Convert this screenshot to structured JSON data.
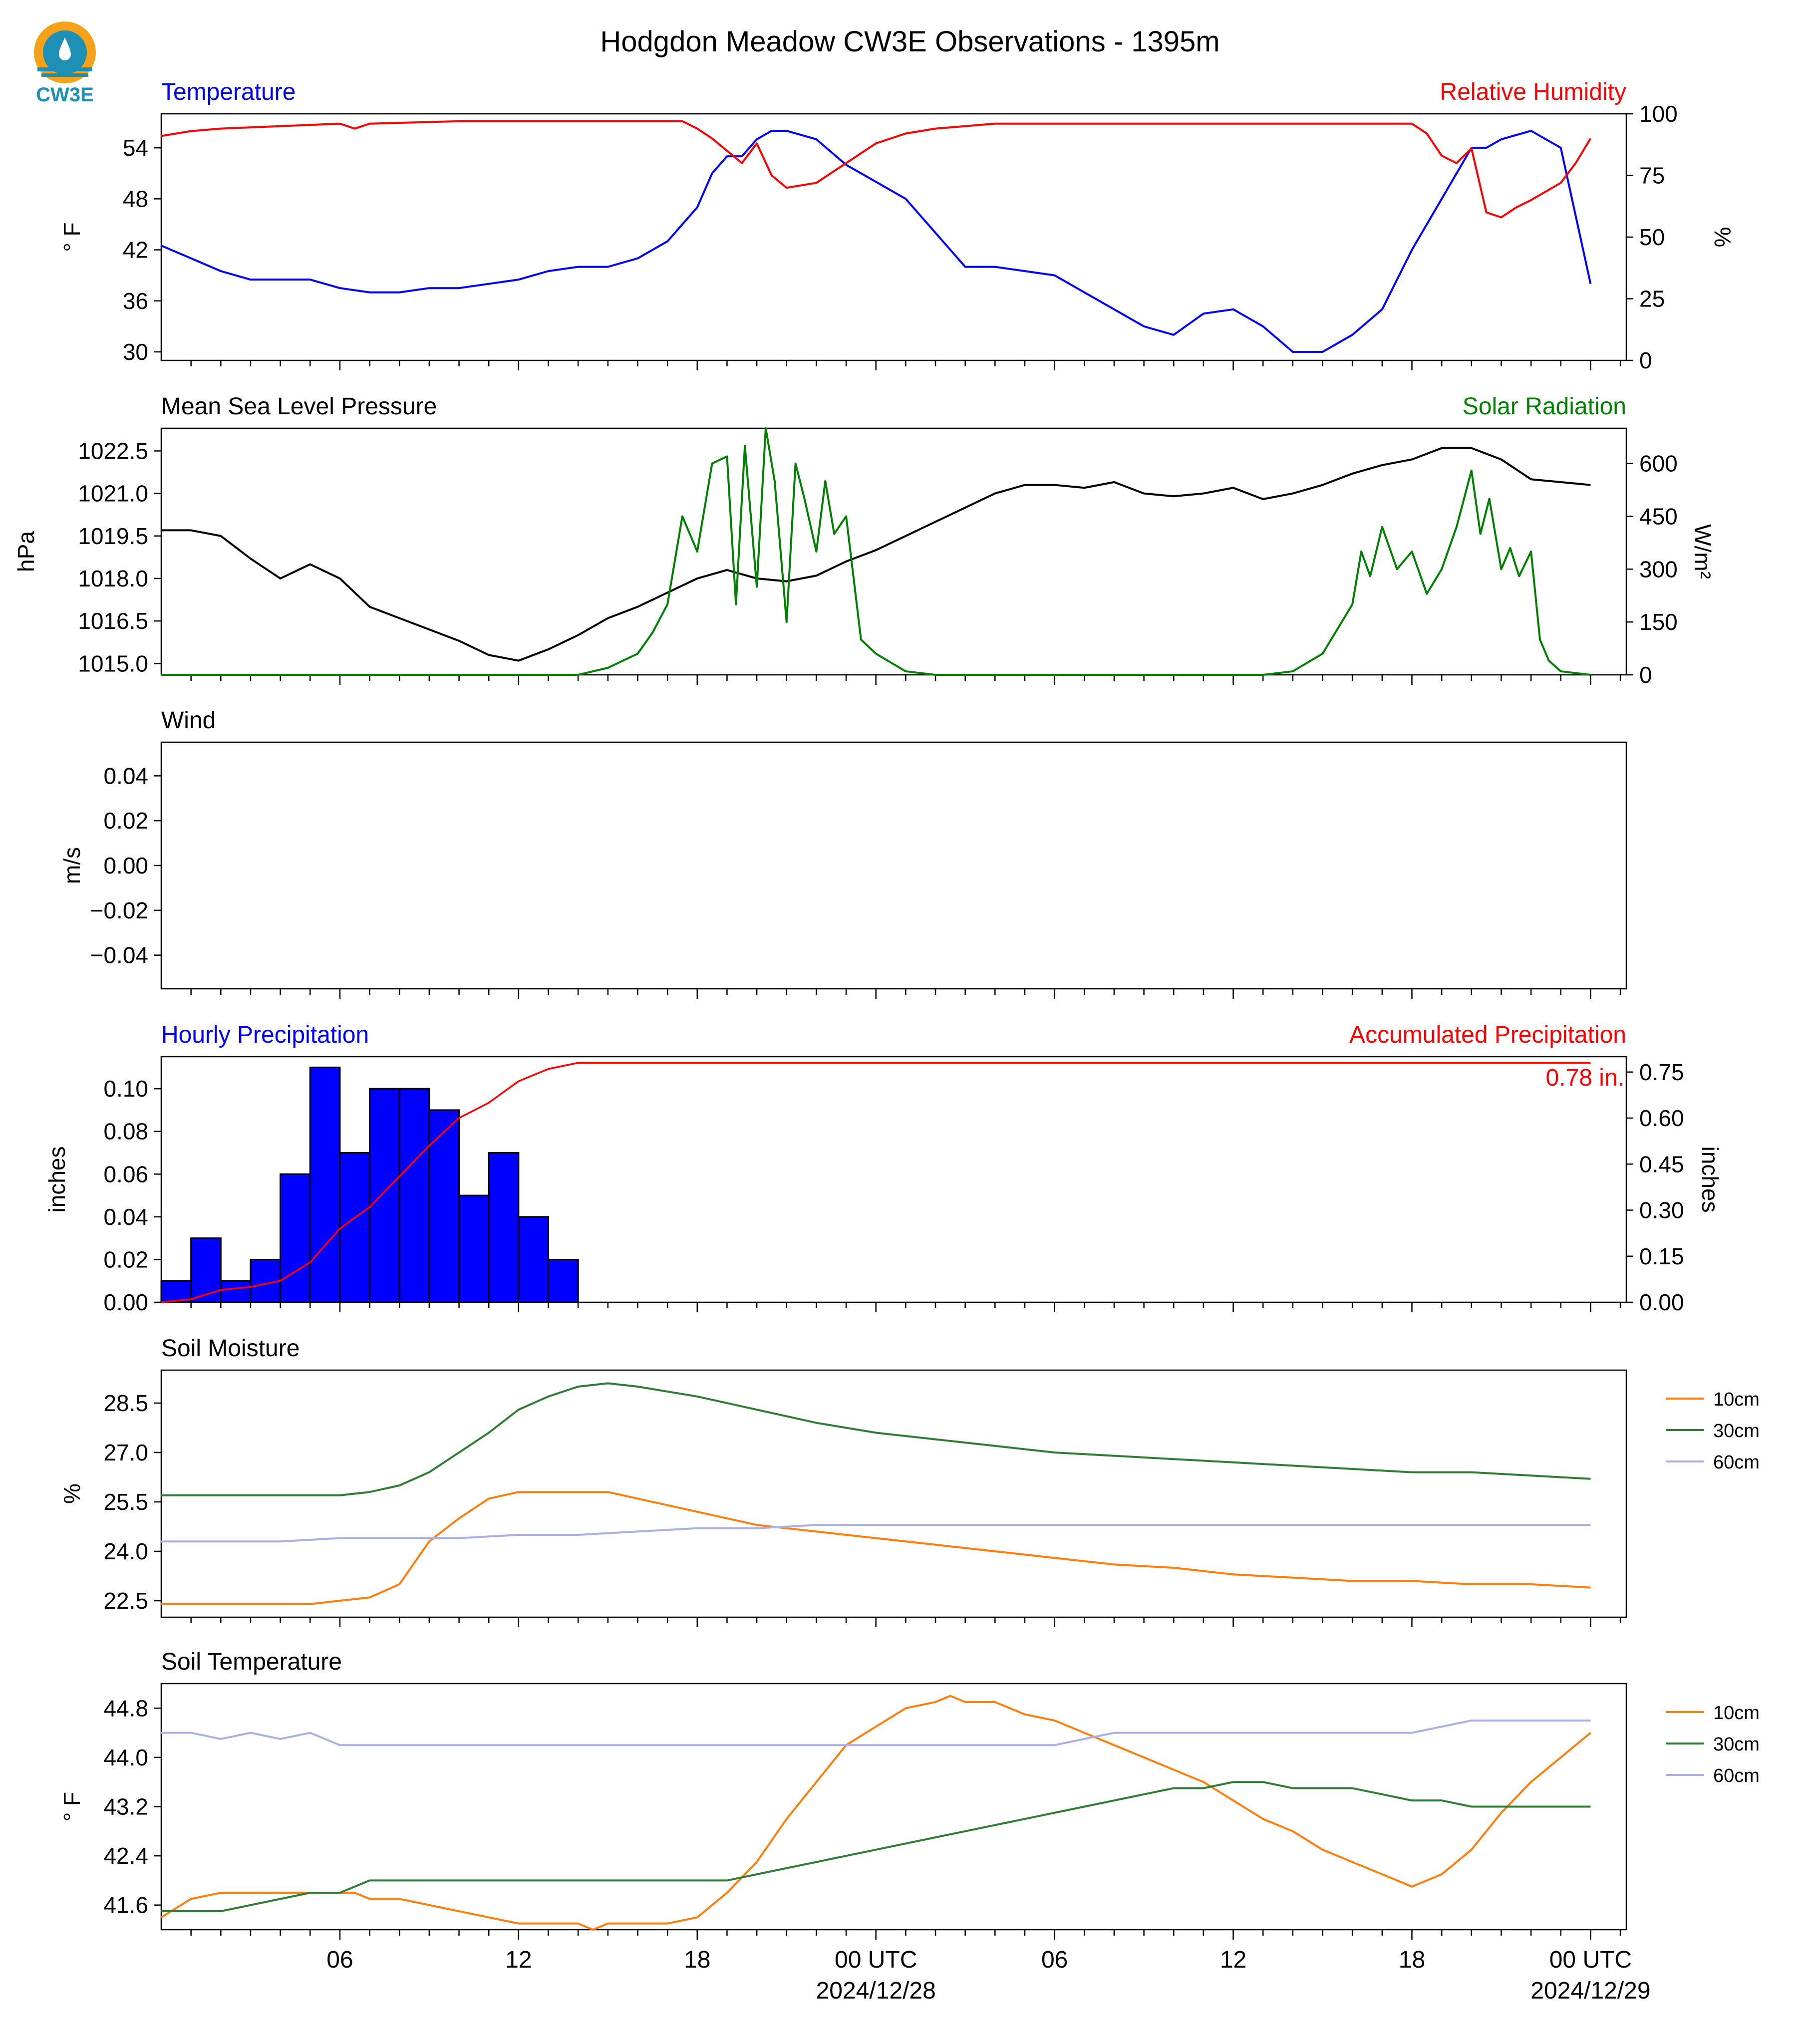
{
  "title": "Hodgdon Meadow CW3E Observations - 1395m",
  "logo_text": "CW3E",
  "colors": {
    "temp": "#0000ff",
    "rh": "#ff0000",
    "pres": "#000000",
    "solar": "#008000",
    "precip": "#0000ff",
    "accum": "#ff0000",
    "s10": "#ff7f0e",
    "s30": "#2e7d32",
    "s60": "#aab0e6"
  },
  "x_ticks": [
    {
      "label": "06",
      "hour": 6
    },
    {
      "label": "12",
      "hour": 12
    },
    {
      "label": "18",
      "hour": 18
    },
    {
      "label": "00 UTC",
      "label2": "2024/12/28",
      "hour": 24
    },
    {
      "label": "06",
      "hour": 30
    },
    {
      "label": "12",
      "hour": 36
    },
    {
      "label": "18",
      "hour": 42
    },
    {
      "label": "00 UTC",
      "label2": "2024/12/29",
      "hour": 48
    }
  ],
  "legend_soil": [
    "10cm",
    "30cm",
    "60cm"
  ],
  "chart_data": [
    {
      "type": "line",
      "left_title": "Temperature",
      "right_title": "Relative Humidity",
      "ylabel": "° F",
      "y2label": "%",
      "ylim": [
        29,
        58
      ],
      "yticks": [
        30,
        36,
        42,
        48,
        54
      ],
      "y2lim": [
        0,
        100
      ],
      "y2ticks": [
        0,
        25,
        50,
        75,
        100
      ],
      "series": [
        {
          "key": "temp",
          "axis": "left",
          "x": [
            0,
            1,
            2,
            3,
            4,
            5,
            6,
            7,
            8,
            9,
            10,
            11,
            12,
            13,
            14,
            15,
            16,
            17,
            18,
            18.5,
            19,
            19.5,
            20,
            20.5,
            21,
            22,
            23,
            24,
            25,
            26,
            27,
            28,
            29,
            30,
            31,
            32,
            33,
            34,
            35,
            36,
            37,
            38,
            39,
            40,
            41,
            42,
            43,
            43.5,
            44,
            44.5,
            45,
            46,
            47,
            48
          ],
          "y": [
            42.5,
            41,
            39.5,
            38.5,
            38.5,
            38.5,
            37.5,
            37,
            37,
            37.5,
            37.5,
            38,
            38.5,
            39.5,
            40,
            40,
            41,
            43,
            47,
            51,
            53,
            53,
            55,
            56,
            56,
            55,
            52,
            50,
            48,
            44,
            40,
            40,
            39.5,
            39,
            37,
            35,
            33,
            32,
            34.5,
            35,
            33,
            30,
            30,
            32,
            35,
            42,
            48,
            51,
            54,
            54,
            55,
            56,
            54,
            38
          ]
        },
        {
          "key": "rh",
          "axis": "right",
          "x": [
            0,
            1,
            2,
            4,
            6,
            6.5,
            7,
            10,
            14,
            17,
            17.5,
            18,
            18.5,
            19,
            19.5,
            20,
            20.5,
            21,
            22,
            23,
            24,
            25,
            26,
            28,
            30,
            32,
            36,
            40,
            42,
            42.5,
            43,
            43.5,
            44,
            44.5,
            45,
            45.5,
            46,
            47,
            47.5,
            48
          ],
          "y": [
            91,
            93,
            94,
            95,
            96,
            94,
            96,
            97,
            97,
            97,
            97,
            94,
            90,
            85,
            80,
            88,
            75,
            70,
            72,
            80,
            88,
            92,
            94,
            96,
            96,
            96,
            96,
            96,
            96,
            92,
            83,
            80,
            86,
            60,
            58,
            62,
            65,
            72,
            80,
            90
          ]
        }
      ]
    },
    {
      "type": "line",
      "left_title": "Mean Sea Level Pressure",
      "right_title": "Solar Radiation",
      "ylabel": "hPa",
      "y2label": "W/m²",
      "ylim": [
        1014.6,
        1023.3
      ],
      "yticks": [
        1015.0,
        1016.5,
        1018.0,
        1019.5,
        1021.0,
        1022.5
      ],
      "y2lim": [
        0,
        700
      ],
      "y2ticks": [
        0,
        150,
        300,
        450,
        600
      ],
      "series": [
        {
          "key": "pres",
          "axis": "left",
          "x": [
            0,
            1,
            2,
            3,
            4,
            5,
            6,
            7,
            8,
            9,
            10,
            11,
            12,
            13,
            14,
            15,
            16,
            17,
            18,
            19,
            20,
            21,
            22,
            23,
            24,
            25,
            26,
            27,
            28,
            29,
            30,
            31,
            32,
            33,
            34,
            35,
            36,
            37,
            38,
            39,
            40,
            41,
            42,
            43,
            44,
            45,
            46,
            47,
            48
          ],
          "y": [
            1019.7,
            1019.7,
            1019.5,
            1018.7,
            1018.0,
            1018.5,
            1018.0,
            1017.0,
            1016.6,
            1016.2,
            1015.8,
            1015.3,
            1015.1,
            1015.5,
            1016.0,
            1016.6,
            1017.0,
            1017.5,
            1018.0,
            1018.3,
            1018.0,
            1017.9,
            1018.1,
            1018.6,
            1019.0,
            1019.5,
            1020.0,
            1020.5,
            1021.0,
            1021.3,
            1021.3,
            1021.2,
            1021.4,
            1021.0,
            1020.9,
            1021.0,
            1021.2,
            1020.8,
            1021.0,
            1021.3,
            1021.7,
            1022.0,
            1022.2,
            1022.6,
            1022.6,
            1022.2,
            1021.5,
            1021.4,
            1021.3
          ]
        },
        {
          "key": "solar",
          "axis": "right",
          "x": [
            0,
            14,
            15,
            16,
            16.5,
            17,
            17.5,
            18,
            18.5,
            19,
            19.3,
            19.6,
            20,
            20.3,
            20.6,
            21,
            21.3,
            21.6,
            22,
            22.3,
            22.6,
            23,
            23.5,
            24,
            25,
            26,
            37,
            38,
            39,
            40,
            40.3,
            40.6,
            41,
            41.5,
            42,
            42.5,
            43,
            43.5,
            44,
            44.3,
            44.6,
            45,
            45.3,
            45.6,
            46,
            46.3,
            46.6,
            47,
            48
          ],
          "y": [
            0,
            0,
            20,
            60,
            120,
            200,
            450,
            350,
            600,
            620,
            200,
            650,
            250,
            700,
            550,
            150,
            600,
            500,
            350,
            550,
            400,
            450,
            100,
            60,
            10,
            0,
            0,
            10,
            60,
            200,
            350,
            280,
            420,
            300,
            350,
            230,
            300,
            420,
            580,
            400,
            500,
            300,
            360,
            280,
            350,
            100,
            40,
            10,
            0
          ]
        }
      ]
    },
    {
      "type": "line",
      "left_title": "Wind",
      "ylabel": "m/s",
      "ylim": [
        -0.055,
        0.055
      ],
      "yticks": [
        -0.04,
        -0.02,
        0.0,
        0.02,
        0.04
      ],
      "series": []
    },
    {
      "type": "bar",
      "left_title": "Hourly Precipitation",
      "right_title": "Accumulated Precipitation",
      "ylabel": "inches",
      "y2label": "inches",
      "ylim": [
        0,
        0.115
      ],
      "yticks": [
        0.0,
        0.02,
        0.04,
        0.06,
        0.08,
        0.1
      ],
      "y2lim": [
        0,
        0.8
      ],
      "y2ticks": [
        0.0,
        0.15,
        0.3,
        0.45,
        0.6,
        0.75
      ],
      "bars_start_hour": [
        0,
        1,
        2,
        3,
        4,
        5,
        6,
        7,
        8,
        9,
        10,
        11,
        12,
        13
      ],
      "values": [
        0.01,
        0.03,
        0.01,
        0.02,
        0.06,
        0.11,
        0.07,
        0.1,
        0.1,
        0.09,
        0.05,
        0.07,
        0.04,
        0.02
      ],
      "accum": {
        "x": [
          0,
          1,
          2,
          3,
          4,
          5,
          6,
          7,
          8,
          9,
          10,
          11,
          12,
          13,
          14,
          48
        ],
        "y": [
          0,
          0.01,
          0.04,
          0.05,
          0.07,
          0.13,
          0.24,
          0.31,
          0.41,
          0.51,
          0.6,
          0.65,
          0.72,
          0.76,
          0.78,
          0.78
        ]
      },
      "annotation": "0.78 in."
    },
    {
      "type": "line",
      "left_title": "Soil Moisture",
      "ylabel": "%",
      "ylim": [
        22.0,
        29.5
      ],
      "yticks": [
        22.5,
        24.0,
        25.5,
        27.0,
        28.5
      ],
      "series": [
        {
          "key": "s10",
          "name": "10cm",
          "x": [
            0,
            1,
            5,
            6,
            7,
            8,
            9,
            10,
            11,
            12,
            15,
            16,
            17,
            18,
            20,
            22,
            24,
            26,
            28,
            30,
            32,
            34,
            36,
            38,
            40,
            42,
            44,
            46,
            48
          ],
          "y": [
            22.4,
            22.4,
            22.4,
            22.5,
            22.6,
            23.0,
            24.3,
            25.0,
            25.6,
            25.8,
            25.8,
            25.6,
            25.4,
            25.2,
            24.8,
            24.6,
            24.4,
            24.2,
            24.0,
            23.8,
            23.6,
            23.5,
            23.3,
            23.2,
            23.1,
            23.1,
            23.0,
            23.0,
            22.9
          ]
        },
        {
          "key": "s30",
          "name": "30cm",
          "x": [
            0,
            2,
            4,
            6,
            7,
            8,
            9,
            10,
            11,
            12,
            13,
            14,
            15,
            16,
            18,
            20,
            22,
            24,
            26,
            28,
            30,
            32,
            34,
            36,
            38,
            40,
            42,
            44,
            46,
            48
          ],
          "y": [
            25.7,
            25.7,
            25.7,
            25.7,
            25.8,
            26.0,
            26.4,
            27.0,
            27.6,
            28.3,
            28.7,
            29.0,
            29.1,
            29.0,
            28.7,
            28.3,
            27.9,
            27.6,
            27.4,
            27.2,
            27.0,
            26.9,
            26.8,
            26.7,
            26.6,
            26.5,
            26.4,
            26.4,
            26.3,
            26.2
          ]
        },
        {
          "key": "s60",
          "name": "60cm",
          "x": [
            0,
            2,
            4,
            6,
            8,
            10,
            12,
            14,
            16,
            18,
            20,
            22,
            24,
            26,
            28,
            30,
            32,
            34,
            36,
            38,
            40,
            42,
            44,
            46,
            48
          ],
          "y": [
            24.3,
            24.3,
            24.3,
            24.4,
            24.4,
            24.4,
            24.5,
            24.5,
            24.6,
            24.7,
            24.7,
            24.8,
            24.8,
            24.8,
            24.8,
            24.8,
            24.8,
            24.8,
            24.8,
            24.8,
            24.8,
            24.8,
            24.8,
            24.8,
            24.8
          ]
        }
      ]
    },
    {
      "type": "line",
      "left_title": "Soil Temperature",
      "ylabel": "° F",
      "ylim": [
        41.2,
        45.2
      ],
      "yticks": [
        41.6,
        42.4,
        43.2,
        44.0,
        44.8
      ],
      "series": [
        {
          "key": "s10",
          "name": "10cm",
          "x": [
            0,
            1,
            2,
            4,
            6,
            6.5,
            7,
            8,
            9,
            10,
            11,
            12,
            13,
            14,
            14.5,
            15,
            16,
            17,
            18,
            19,
            20,
            21,
            22,
            23,
            24,
            25,
            26,
            26.5,
            27,
            28,
            29,
            30,
            31,
            32,
            33,
            34,
            35,
            36,
            37,
            38,
            39,
            40,
            41,
            42,
            43,
            44,
            45,
            46,
            47,
            48
          ],
          "y": [
            41.4,
            41.7,
            41.8,
            41.8,
            41.8,
            41.8,
            41.7,
            41.7,
            41.6,
            41.5,
            41.4,
            41.3,
            41.3,
            41.3,
            41.2,
            41.3,
            41.3,
            41.3,
            41.4,
            41.8,
            42.3,
            43.0,
            43.6,
            44.2,
            44.5,
            44.8,
            44.9,
            45.0,
            44.9,
            44.9,
            44.7,
            44.6,
            44.4,
            44.2,
            44.0,
            43.8,
            43.6,
            43.3,
            43.0,
            42.8,
            42.5,
            42.3,
            42.1,
            41.9,
            42.1,
            42.5,
            43.1,
            43.6,
            44.0,
            44.4
          ]
        },
        {
          "key": "s30",
          "name": "30cm",
          "x": [
            0,
            2,
            3,
            4,
            5,
            6,
            7,
            8,
            10,
            12,
            14,
            16,
            18,
            19,
            20,
            21,
            22,
            23,
            24,
            25,
            26,
            27,
            28,
            29,
            30,
            31,
            32,
            33,
            34,
            35,
            36,
            37,
            38,
            39,
            40,
            41,
            42,
            43,
            44,
            45,
            46,
            47,
            48
          ],
          "y": [
            41.5,
            41.5,
            41.6,
            41.7,
            41.8,
            41.8,
            42.0,
            42.0,
            42.0,
            42.0,
            42.0,
            42.0,
            42.0,
            42.0,
            42.1,
            42.2,
            42.3,
            42.4,
            42.5,
            42.6,
            42.7,
            42.8,
            42.9,
            43.0,
            43.1,
            43.2,
            43.3,
            43.4,
            43.5,
            43.5,
            43.6,
            43.6,
            43.5,
            43.5,
            43.5,
            43.4,
            43.3,
            43.3,
            43.2,
            43.2,
            43.2,
            43.2,
            43.2
          ]
        },
        {
          "key": "s60",
          "name": "60cm",
          "x": [
            0,
            1,
            2,
            3,
            4,
            5,
            6,
            10,
            14,
            18,
            22,
            26,
            28,
            30,
            32,
            34,
            36,
            38,
            40,
            42,
            44,
            46,
            48
          ],
          "y": [
            44.4,
            44.4,
            44.3,
            44.4,
            44.3,
            44.4,
            44.2,
            44.2,
            44.2,
            44.2,
            44.2,
            44.2,
            44.2,
            44.2,
            44.4,
            44.4,
            44.4,
            44.4,
            44.4,
            44.4,
            44.6,
            44.6,
            44.6
          ]
        }
      ]
    }
  ]
}
